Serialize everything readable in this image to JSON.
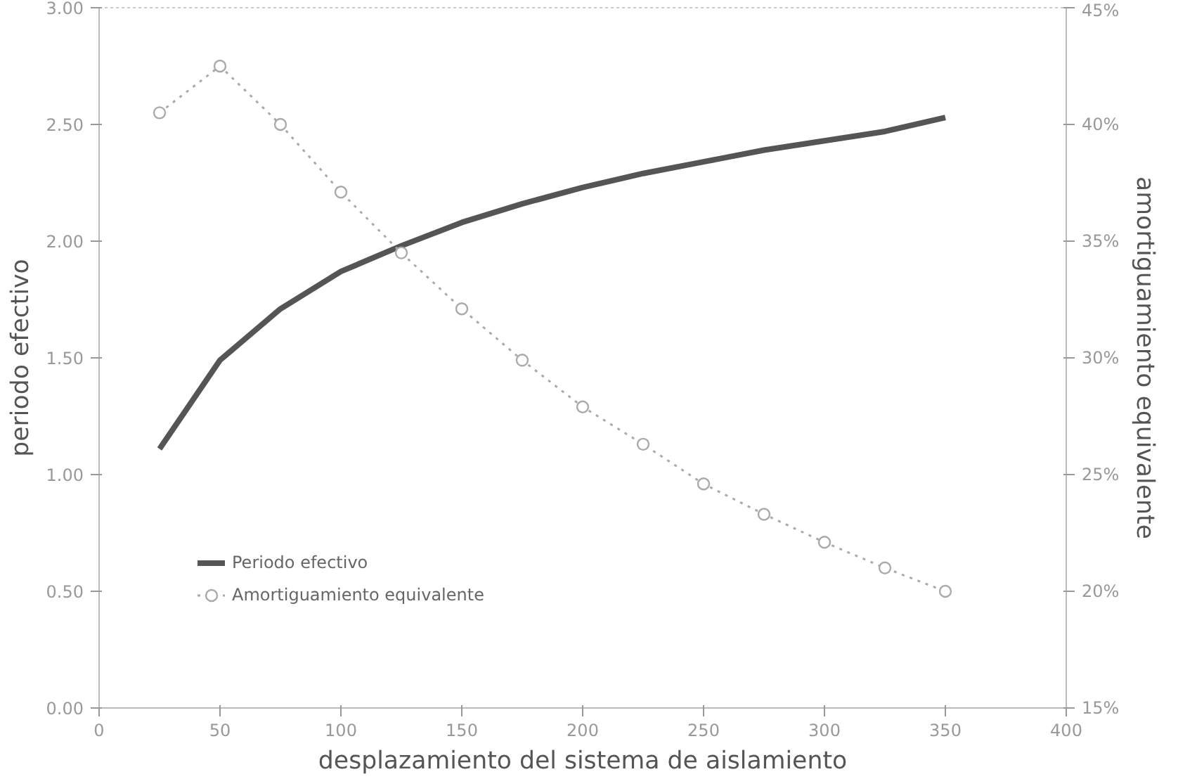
{
  "chart_data": {
    "type": "line",
    "xlabel": "desplazamiento del sistema de aislamiento",
    "ylabel": "periodo efectivo",
    "y2label": "amortiguamiento equivalente",
    "x": [
      25,
      50,
      75,
      100,
      125,
      150,
      175,
      200,
      225,
      250,
      275,
      300,
      325,
      350
    ],
    "series": [
      {
        "name": "Periodo efectivo",
        "color": "#555555",
        "values": [
          1.11,
          1.49,
          1.71,
          1.87,
          1.98,
          2.08,
          2.16,
          2.23,
          2.29,
          2.34,
          2.39,
          2.43,
          2.47,
          2.53
        ],
        "marker": "none",
        "line_style": "solid"
      },
      {
        "name": "Amortiguamiento equivalente",
        "color": "#aaaaaa",
        "axis": "y2",
        "values": [
          40.5,
          42.5,
          40.0,
          37.1,
          34.5,
          32.1,
          29.9,
          27.9,
          26.3,
          24.6,
          23.3,
          22.1,
          21.0,
          20.0
        ],
        "marker": "circle",
        "line_style": "dotted"
      }
    ],
    "xlim": [
      0,
      400
    ],
    "xticks": [
      0,
      50,
      100,
      150,
      200,
      250,
      300,
      350,
      400
    ],
    "ylim": [
      0,
      3
    ],
    "yticks": [
      {
        "value": 0,
        "label": "0.00"
      },
      {
        "value": 0.5,
        "label": "0.50"
      },
      {
        "value": 1,
        "label": "1.00"
      },
      {
        "value": 1.5,
        "label": "1.50"
      },
      {
        "value": 2,
        "label": "2.00"
      },
      {
        "value": 2.5,
        "label": "2.50"
      },
      {
        "value": 3,
        "label": "3.00"
      }
    ],
    "y2lim": [
      15,
      45
    ],
    "y2ticks": [
      {
        "value": 15,
        "label": "15%"
      },
      {
        "value": 20,
        "label": "20%"
      },
      {
        "value": 25,
        "label": "25%"
      },
      {
        "value": 30,
        "label": "30%"
      },
      {
        "value": 35,
        "label": "35%"
      },
      {
        "value": 40,
        "label": "40%"
      },
      {
        "value": 45,
        "label": "45%"
      }
    ],
    "legend": "bottom left",
    "grid": false
  }
}
